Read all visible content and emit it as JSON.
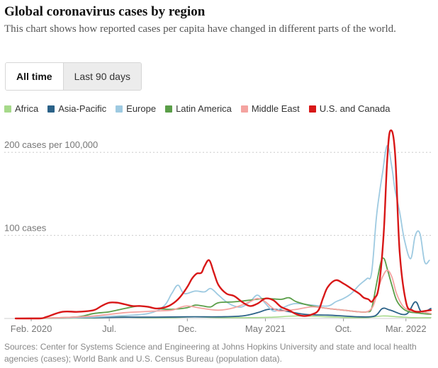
{
  "header": {
    "title": "Global coronavirus cases by region",
    "subtitle": "This chart shows how reported cases per capita have changed in different parts of the world."
  },
  "time_toggle": {
    "all_time_label": "All time",
    "last_90_days_label": "Last 90 days",
    "selected": "All time"
  },
  "footer": {
    "sources": "Sources: Center for Systems Science and Engineering at Johns Hopkins University and state and local health agencies (cases); World Bank and U.S. Census Bureau (population data)."
  },
  "chart_data": {
    "type": "line",
    "title": "Global coronavirus cases by region",
    "unit": "cases per 100,000",
    "xlabel": "",
    "ylabel": "",
    "xlim": [
      0,
      26.6
    ],
    "ylim": [
      0,
      230
    ],
    "x_ticks": [
      {
        "value": 1,
        "label": "Feb. 2020"
      },
      {
        "value": 6,
        "label": "Jul."
      },
      {
        "value": 11,
        "label": "Dec."
      },
      {
        "value": 16,
        "label": "May 2021"
      },
      {
        "value": 21,
        "label": "Oct."
      },
      {
        "value": 25,
        "label": "Mar. 2022"
      }
    ],
    "y_ticks": [
      {
        "value": 100,
        "label": "100 cases"
      },
      {
        "value": 200,
        "label": "200 cases per 100,000"
      }
    ],
    "legend_position": "top",
    "series": [
      {
        "name": "Africa",
        "color": "#a6d98a",
        "x": [
          0,
          5,
          6.5,
          8,
          10,
          11.5,
          13,
          15,
          16.5,
          18,
          20,
          21.5,
          22.5,
          23.5,
          24.5,
          25.5,
          26.6
        ],
        "y": [
          0,
          0.5,
          2,
          1,
          1,
          2,
          1,
          1,
          1.5,
          3,
          2,
          1,
          1,
          3,
          2,
          1,
          1
        ]
      },
      {
        "name": "Asia-Pacific",
        "color": "#2b6288",
        "x": [
          0,
          5,
          7,
          9,
          11,
          13,
          14.5,
          15.5,
          16.2,
          17,
          18.5,
          20,
          21,
          22,
          23,
          23.5,
          24,
          25,
          25.6,
          26,
          26.6
        ],
        "y": [
          0,
          1,
          1.5,
          1.5,
          2,
          2,
          3,
          7,
          11,
          10,
          5,
          4,
          3,
          2,
          3,
          12,
          10,
          5,
          20,
          8,
          12
        ]
      },
      {
        "name": "Europe",
        "color": "#9ecae1",
        "x": [
          0,
          4,
          6.5,
          8.5,
          9.5,
          10,
          10.4,
          10.8,
          11.5,
          12.1,
          12.5,
          13,
          13.5,
          14,
          14.5,
          15,
          15.5,
          16,
          16.5,
          17,
          17.5,
          18,
          19,
          20,
          20.5,
          21,
          21.5,
          22,
          22.5,
          22.8,
          23.1,
          23.3,
          23.5,
          23.8,
          24.1,
          24.3,
          24.6,
          24.9,
          25.3,
          25.6,
          25.9,
          26.2,
          26.5
        ],
        "y": [
          0,
          1,
          3,
          6,
          15,
          30,
          40,
          30,
          33,
          32,
          36,
          28,
          20,
          15,
          14,
          20,
          28,
          18,
          9,
          12,
          16,
          18,
          16,
          15,
          20,
          24,
          30,
          40,
          48,
          55,
          120,
          150,
          175,
          208,
          182,
          155,
          128,
          95,
          72,
          100,
          102,
          68,
          70
        ]
      },
      {
        "name": "Latin America",
        "color": "#5a9e48",
        "x": [
          0,
          2,
          4,
          5,
          6,
          7,
          8,
          9,
          10,
          11,
          11.5,
          12,
          12.5,
          13,
          14,
          15,
          16,
          17,
          17.5,
          18,
          19,
          20,
          21,
          22,
          22.5,
          22.8,
          23.1,
          23.4,
          23.6,
          23.8,
          24.1,
          24.4,
          24.8,
          25.2,
          25.6,
          26,
          26.6
        ],
        "y": [
          0,
          0.5,
          2,
          6,
          8,
          12,
          15,
          12,
          11,
          13,
          16,
          15,
          14,
          19,
          20,
          22,
          24,
          23,
          25,
          20,
          15,
          12,
          10,
          8,
          8,
          12,
          40,
          68,
          72,
          60,
          40,
          22,
          12,
          8,
          7,
          6,
          5
        ]
      },
      {
        "name": "Middle East",
        "color": "#f4a3a0",
        "x": [
          0,
          3,
          5,
          7,
          8,
          9,
          10,
          10.5,
          11,
          12,
          13,
          14,
          15,
          15.5,
          16,
          16.5,
          17,
          18,
          19,
          20,
          21,
          22,
          22.5,
          22.8,
          23,
          23.3,
          23.5,
          23.8,
          24.1,
          24.4,
          24.8,
          25.2,
          25.6,
          26,
          26.6
        ],
        "y": [
          0,
          1,
          3,
          7,
          8,
          9,
          10,
          13,
          15,
          12,
          10,
          13,
          20,
          24,
          20,
          12,
          9,
          11,
          14,
          12,
          10,
          8,
          8,
          12,
          20,
          40,
          50,
          58,
          50,
          30,
          15,
          10,
          8,
          8,
          6
        ]
      },
      {
        "name": "U.S. and Canada",
        "color": "#d81818",
        "x": [
          0,
          1.5,
          2,
          3,
          4,
          5,
          5.5,
          6,
          6.5,
          7,
          7.5,
          8,
          8.5,
          9,
          9.5,
          10,
          10.5,
          11,
          11.3,
          11.6,
          11.9,
          12.1,
          12.4,
          12.7,
          13,
          13.5,
          14,
          14.5,
          15,
          15.5,
          16,
          16.5,
          17,
          17.5,
          18,
          18.5,
          19,
          19.4,
          19.7,
          20,
          20.5,
          21,
          21.5,
          22,
          22.3,
          22.6,
          22.8,
          23,
          23.2,
          23.4,
          23.6,
          23.8,
          24,
          24.3,
          24.6,
          25,
          25.4,
          25.8,
          26.2,
          26.6
        ],
        "y": [
          0,
          0,
          2,
          8,
          8,
          10,
          15,
          19,
          19,
          17,
          15,
          15,
          14,
          12,
          13,
          17,
          25,
          38,
          48,
          54,
          55,
          63,
          70,
          55,
          40,
          30,
          27,
          20,
          15,
          18,
          24,
          22,
          14,
          10,
          5,
          3,
          5,
          10,
          25,
          38,
          46,
          42,
          36,
          30,
          25,
          23,
          20,
          25,
          32,
          60,
          110,
          190,
          226,
          200,
          80,
          20,
          10,
          8,
          9,
          10
        ]
      }
    ]
  }
}
